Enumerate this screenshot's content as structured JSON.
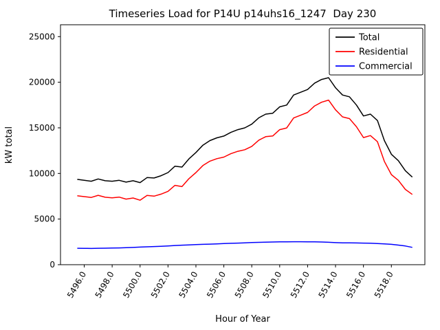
{
  "chart_data": {
    "type": "line",
    "title": "Timeseries Load for P14U p14uhs16_1247  Day 230",
    "xlabel": "Hour of Year",
    "ylabel": "kW total",
    "grid": false,
    "legend_position": "upper right",
    "xlim": [
      5494.3,
      5520.4
    ],
    "ylim": [
      0,
      26300
    ],
    "xticks": [
      5496,
      5498,
      5500,
      5502,
      5504,
      5506,
      5508,
      5510,
      5512,
      5514,
      5516,
      5518
    ],
    "xtick_labels": [
      "5496.0",
      "5498.0",
      "5500.0",
      "5502.0",
      "5504.0",
      "5506.0",
      "5508.0",
      "5510.0",
      "5512.0",
      "5514.0",
      "5516.0",
      "5518.0"
    ],
    "yticks": [
      0,
      5000,
      10000,
      15000,
      20000,
      25000
    ],
    "ytick_labels": [
      "0",
      "5000",
      "10000",
      "15000",
      "20000",
      "25000"
    ],
    "x": [
      5495.5,
      5496.0,
      5496.5,
      5497.0,
      5497.5,
      5498.0,
      5498.5,
      5499.0,
      5499.5,
      5500.0,
      5500.5,
      5501.0,
      5501.5,
      5502.0,
      5502.5,
      5503.0,
      5503.5,
      5504.0,
      5504.5,
      5505.0,
      5505.5,
      5506.0,
      5506.5,
      5507.0,
      5507.5,
      5508.0,
      5508.5,
      5509.0,
      5509.5,
      5510.0,
      5510.5,
      5511.0,
      5511.5,
      5512.0,
      5512.5,
      5513.0,
      5513.5,
      5514.0,
      5514.5,
      5515.0,
      5515.5,
      5516.0,
      5516.5,
      5517.0,
      5517.5,
      5518.0,
      5518.5,
      5519.0,
      5519.5
    ],
    "series": [
      {
        "name": "Total",
        "color": "#000000",
        "values": [
          9350,
          9250,
          9150,
          9400,
          9200,
          9150,
          9250,
          9050,
          9200,
          9000,
          9550,
          9500,
          9750,
          10100,
          10800,
          10700,
          11600,
          12300,
          13100,
          13600,
          13900,
          14100,
          14500,
          14800,
          15000,
          15400,
          16100,
          16500,
          16600,
          17300,
          17500,
          18600,
          18900,
          19200,
          19900,
          20300,
          20500,
          19400,
          18600,
          18400,
          17500,
          16300,
          16500,
          15800,
          13600,
          12100,
          11400,
          10300,
          9600
        ]
      },
      {
        "name": "Residential",
        "color": "#ff0000",
        "values": [
          7550,
          7460,
          7370,
          7600,
          7390,
          7330,
          7410,
          7190,
          7310,
          7070,
          7590,
          7510,
          7730,
          8040,
          8700,
          8560,
          9430,
          10100,
          10870,
          11350,
          11620,
          11790,
          12160,
          12430,
          12600,
          12970,
          13650,
          14030,
          14110,
          14800,
          14990,
          16080,
          16380,
          16690,
          17400,
          17810,
          18040,
          16980,
          16200,
          16010,
          15120,
          13930,
          14150,
          13480,
          11320,
          9870,
          9250,
          8250,
          7700
        ]
      },
      {
        "name": "Commercial",
        "color": "#0000ff",
        "values": [
          1800,
          1790,
          1780,
          1800,
          1810,
          1820,
          1840,
          1860,
          1890,
          1930,
          1960,
          1990,
          2020,
          2060,
          2100,
          2140,
          2170,
          2200,
          2230,
          2250,
          2280,
          2310,
          2340,
          2370,
          2400,
          2430,
          2450,
          2470,
          2490,
          2500,
          2510,
          2520,
          2520,
          2510,
          2500,
          2490,
          2460,
          2420,
          2400,
          2390,
          2380,
          2370,
          2350,
          2320,
          2280,
          2230,
          2150,
          2050,
          1900
        ]
      }
    ]
  }
}
